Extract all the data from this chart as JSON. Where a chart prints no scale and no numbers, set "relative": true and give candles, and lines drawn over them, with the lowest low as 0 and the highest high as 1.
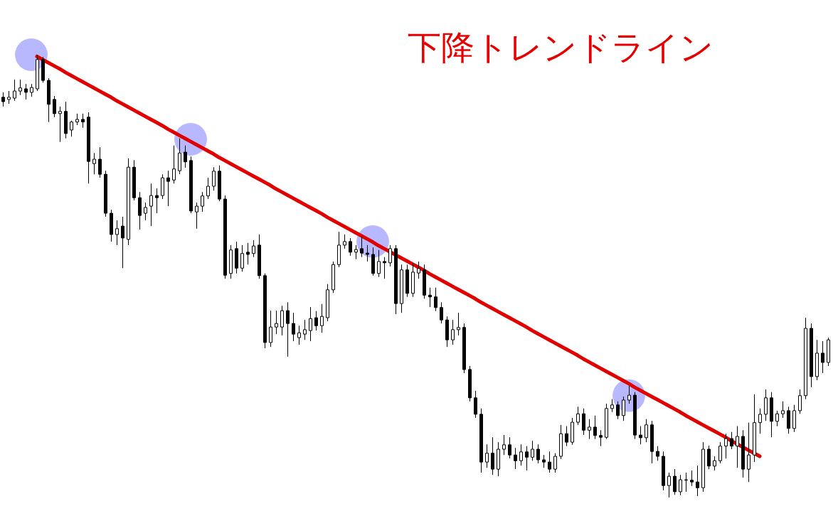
{
  "chart_data": {
    "type": "candlestick",
    "title": "下降トレンドライン",
    "relative": true,
    "categories": [
      null,
      null,
      null,
      null,
      null,
      null,
      null,
      null,
      null,
      null,
      null,
      null,
      null,
      null,
      null,
      null,
      null,
      null,
      null,
      null,
      null,
      null,
      null,
      null,
      null,
      null,
      null,
      null,
      null,
      null,
      null,
      null,
      null,
      null,
      null,
      null,
      null,
      null,
      null,
      null,
      null,
      null,
      null,
      null,
      null,
      null,
      null,
      null,
      null,
      null,
      null,
      null,
      null,
      null,
      null,
      null,
      null,
      null,
      null,
      null,
      null,
      null,
      null,
      null,
      null,
      null,
      null,
      null,
      null,
      null,
      null,
      null,
      null,
      null,
      null,
      null,
      null,
      null,
      null,
      null,
      null,
      null,
      null,
      null,
      null,
      null,
      null,
      null,
      null,
      null,
      null,
      null,
      null,
      null,
      null,
      null,
      null,
      null,
      null,
      null,
      null,
      null,
      null,
      null,
      null,
      null,
      null,
      null,
      null,
      null,
      null,
      null,
      null,
      null,
      null,
      null,
      null,
      null,
      null,
      null,
      null,
      null,
      null,
      null,
      null,
      null,
      null,
      null,
      null,
      null,
      null,
      null,
      null,
      null,
      null,
      null,
      null,
      null,
      null,
      null,
      null,
      null,
      null,
      null,
      null,
      null
    ],
    "ohlc": [
      [
        0.904,
        0.915,
        0.883,
        0.894
      ],
      [
        0.899,
        0.918,
        0.889,
        0.904
      ],
      [
        0.902,
        0.944,
        0.896,
        0.918
      ],
      [
        0.918,
        0.944,
        0.909,
        0.925
      ],
      [
        0.923,
        0.934,
        0.899,
        0.915
      ],
      [
        0.915,
        0.934,
        0.905,
        0.926
      ],
      [
        0.923,
        1.0,
        0.918,
        0.989
      ],
      [
        0.989,
        0.995,
        0.937,
        0.942
      ],
      [
        0.942,
        0.947,
        0.848,
        0.888
      ],
      [
        0.899,
        0.907,
        0.859,
        0.867
      ],
      [
        0.867,
        0.883,
        0.803,
        0.872
      ],
      [
        0.872,
        0.894,
        0.811,
        0.822
      ],
      [
        0.83,
        0.851,
        0.815,
        0.848
      ],
      [
        0.848,
        0.867,
        0.841,
        0.854
      ],
      [
        0.854,
        0.867,
        0.835,
        0.848
      ],
      [
        0.859,
        0.87,
        0.709,
        0.759
      ],
      [
        0.754,
        0.778,
        0.73,
        0.764
      ],
      [
        0.764,
        0.791,
        0.722,
        0.73
      ],
      [
        0.73,
        0.738,
        0.634,
        0.642
      ],
      [
        0.642,
        0.65,
        0.578,
        0.594
      ],
      [
        0.594,
        0.626,
        0.57,
        0.607
      ],
      [
        0.613,
        0.634,
        0.518,
        0.586
      ],
      [
        0.583,
        0.766,
        0.57,
        0.746
      ],
      [
        0.746,
        0.762,
        0.671,
        0.677
      ],
      [
        0.677,
        0.69,
        0.605,
        0.637
      ],
      [
        0.642,
        0.666,
        0.626,
        0.655
      ],
      [
        0.658,
        0.709,
        0.613,
        0.682
      ],
      [
        0.682,
        0.698,
        0.642,
        0.677
      ],
      [
        0.682,
        0.73,
        0.674,
        0.722
      ],
      [
        0.722,
        0.738,
        0.658,
        0.714
      ],
      [
        0.717,
        0.795,
        0.709,
        0.742
      ],
      [
        0.738,
        0.811,
        0.73,
        0.778
      ],
      [
        0.78,
        0.795,
        0.745,
        0.758
      ],
      [
        0.761,
        0.77,
        0.642,
        0.647
      ],
      [
        0.645,
        0.666,
        0.607,
        0.658
      ],
      [
        0.658,
        0.69,
        0.645,
        0.681
      ],
      [
        0.681,
        0.722,
        0.674,
        0.703
      ],
      [
        0.703,
        0.746,
        0.693,
        0.737
      ],
      [
        0.737,
        0.75,
        0.669,
        0.674
      ],
      [
        0.674,
        0.682,
        0.494,
        0.502
      ],
      [
        0.506,
        0.57,
        0.494,
        0.559
      ],
      [
        0.562,
        0.578,
        0.506,
        0.518
      ],
      [
        0.518,
        0.57,
        0.51,
        0.551
      ],
      [
        0.554,
        0.575,
        0.526,
        0.549
      ],
      [
        0.551,
        0.581,
        0.543,
        0.568
      ],
      [
        0.57,
        0.594,
        0.494,
        0.501
      ],
      [
        0.501,
        0.506,
        0.337,
        0.35
      ],
      [
        0.35,
        0.422,
        0.34,
        0.385
      ],
      [
        0.385,
        0.422,
        0.369,
        0.393
      ],
      [
        0.385,
        0.433,
        0.366,
        0.422
      ],
      [
        0.422,
        0.441,
        0.318,
        0.393
      ],
      [
        0.393,
        0.417,
        0.353,
        0.369
      ],
      [
        0.361,
        0.388,
        0.345,
        0.372
      ],
      [
        0.369,
        0.401,
        0.356,
        0.379
      ],
      [
        0.377,
        0.43,
        0.353,
        0.404
      ],
      [
        0.406,
        0.421,
        0.377,
        0.388
      ],
      [
        0.388,
        0.437,
        0.372,
        0.409
      ],
      [
        0.406,
        0.482,
        0.398,
        0.469
      ],
      [
        0.469,
        0.533,
        0.462,
        0.526
      ],
      [
        0.526,
        0.6,
        0.52,
        0.57
      ],
      [
        0.57,
        0.594,
        0.562,
        0.578
      ],
      [
        0.578,
        0.586,
        0.546,
        0.554
      ],
      [
        0.554,
        0.57,
        0.538,
        0.56
      ],
      [
        0.562,
        0.589,
        0.543,
        0.552
      ],
      [
        0.552,
        0.57,
        0.533,
        0.549
      ],
      [
        0.549,
        0.565,
        0.501,
        0.506
      ],
      [
        0.506,
        0.559,
        0.498,
        0.533
      ],
      [
        0.533,
        0.543,
        0.494,
        0.53
      ],
      [
        0.53,
        0.57,
        0.522,
        0.562
      ],
      [
        0.562,
        0.57,
        0.414,
        0.438
      ],
      [
        0.438,
        0.526,
        0.417,
        0.514
      ],
      [
        0.514,
        0.526,
        0.453,
        0.461
      ],
      [
        0.461,
        0.53,
        0.453,
        0.509
      ],
      [
        0.507,
        0.533,
        0.494,
        0.517
      ],
      [
        0.514,
        0.526,
        0.449,
        0.457
      ],
      [
        0.457,
        0.474,
        0.43,
        0.453
      ],
      [
        0.453,
        0.474,
        0.421,
        0.429
      ],
      [
        0.429,
        0.441,
        0.393,
        0.401
      ],
      [
        0.401,
        0.409,
        0.34,
        0.356
      ],
      [
        0.356,
        0.401,
        0.345,
        0.379
      ],
      [
        0.379,
        0.417,
        0.366,
        0.384
      ],
      [
        0.384,
        0.393,
        0.281,
        0.289
      ],
      [
        0.289,
        0.297,
        0.217,
        0.225
      ],
      [
        0.225,
        0.241,
        0.18,
        0.188
      ],
      [
        0.188,
        0.201,
        0.056,
        0.08
      ],
      [
        0.08,
        0.12,
        0.067,
        0.1
      ],
      [
        0.1,
        0.136,
        0.051,
        0.064
      ],
      [
        0.064,
        0.125,
        0.048,
        0.109
      ],
      [
        0.109,
        0.141,
        0.096,
        0.119
      ],
      [
        0.119,
        0.136,
        0.088,
        0.096
      ],
      [
        0.096,
        0.112,
        0.064,
        0.083
      ],
      [
        0.083,
        0.12,
        0.072,
        0.103
      ],
      [
        0.103,
        0.116,
        0.061,
        0.091
      ],
      [
        0.091,
        0.128,
        0.083,
        0.109
      ],
      [
        0.109,
        0.12,
        0.077,
        0.085
      ],
      [
        0.085,
        0.096,
        0.067,
        0.08
      ],
      [
        0.08,
        0.104,
        0.056,
        0.064
      ],
      [
        0.064,
        0.1,
        0.056,
        0.093
      ],
      [
        0.093,
        0.164,
        0.087,
        0.144
      ],
      [
        0.144,
        0.161,
        0.116,
        0.125
      ],
      [
        0.125,
        0.18,
        0.119,
        0.17
      ],
      [
        0.17,
        0.205,
        0.164,
        0.189
      ],
      [
        0.189,
        0.201,
        0.141,
        0.152
      ],
      [
        0.152,
        0.177,
        0.132,
        0.159
      ],
      [
        0.159,
        0.185,
        0.132,
        0.14
      ],
      [
        0.14,
        0.152,
        0.116,
        0.136
      ],
      [
        0.136,
        0.212,
        0.132,
        0.201
      ],
      [
        0.201,
        0.222,
        0.193,
        0.209
      ],
      [
        0.209,
        0.217,
        0.177,
        0.185
      ],
      [
        0.185,
        0.228,
        0.173,
        0.22
      ],
      [
        0.22,
        0.252,
        0.212,
        0.231
      ],
      [
        0.231,
        0.238,
        0.132,
        0.141
      ],
      [
        0.141,
        0.161,
        0.12,
        0.135
      ],
      [
        0.135,
        0.177,
        0.125,
        0.164
      ],
      [
        0.164,
        0.173,
        0.077,
        0.104
      ],
      [
        0.104,
        0.116,
        0.083,
        0.093
      ],
      [
        0.093,
        0.104,
        0.016,
        0.027
      ],
      [
        0.027,
        0.056,
        0.0,
        0.048
      ],
      [
        0.048,
        0.064,
        0.006,
        0.013
      ],
      [
        0.013,
        0.051,
        0.005,
        0.04
      ],
      [
        0.04,
        0.056,
        0.013,
        0.039
      ],
      [
        0.039,
        0.061,
        0.026,
        0.035
      ],
      [
        0.035,
        0.072,
        0.003,
        0.022
      ],
      [
        0.022,
        0.125,
        0.013,
        0.109
      ],
      [
        0.109,
        0.117,
        0.064,
        0.071
      ],
      [
        0.071,
        0.093,
        0.061,
        0.083
      ],
      [
        0.083,
        0.125,
        0.077,
        0.116
      ],
      [
        0.116,
        0.144,
        0.088,
        0.133
      ],
      [
        0.133,
        0.148,
        0.109,
        0.116
      ],
      [
        0.116,
        0.161,
        0.067,
        0.138
      ],
      [
        0.138,
        0.152,
        0.045,
        0.064
      ],
      [
        0.064,
        0.169,
        0.035,
        0.096
      ],
      [
        0.096,
        0.233,
        0.08,
        0.169
      ],
      [
        0.169,
        0.201,
        0.144,
        0.188
      ],
      [
        0.188,
        0.244,
        0.173,
        0.225
      ],
      [
        0.225,
        0.238,
        0.136,
        0.172
      ],
      [
        0.172,
        0.196,
        0.161,
        0.189
      ],
      [
        0.189,
        0.217,
        0.18,
        0.196
      ],
      [
        0.196,
        0.205,
        0.144,
        0.156
      ],
      [
        0.156,
        0.209,
        0.148,
        0.196
      ],
      [
        0.196,
        0.244,
        0.189,
        0.23
      ],
      [
        0.23,
        0.406,
        0.222,
        0.382
      ],
      [
        0.382,
        0.393,
        0.249,
        0.273
      ],
      [
        0.273,
        0.356,
        0.265,
        0.326
      ],
      [
        0.326,
        0.353,
        0.281,
        0.305
      ],
      [
        0.305,
        0.361,
        0.297,
        0.356
      ]
    ],
    "series": [
      {
        "type": "scatter",
        "color": "#b8b8ff",
        "marker": "circle",
        "values": [
          null,
          null,
          null,
          null,
          null,
          1.0,
          null,
          null,
          null,
          null,
          null,
          null,
          null,
          null,
          null,
          null,
          null,
          null,
          null,
          null,
          null,
          null,
          null,
          null,
          null,
          null,
          null,
          null,
          null,
          null,
          null,
          null,
          null,
          0.809,
          null,
          null,
          null,
          null,
          null,
          null,
          null,
          null,
          null,
          null,
          null,
          null,
          null,
          null,
          null,
          null,
          null,
          null,
          null,
          null,
          null,
          null,
          null,
          null,
          null,
          null,
          null,
          null,
          null,
          null,
          null,
          0.578,
          null,
          null,
          null,
          null,
          null,
          null,
          null,
          null,
          null,
          null,
          null,
          null,
          null,
          null,
          null,
          null,
          null,
          null,
          null,
          null,
          null,
          null,
          null,
          null,
          null,
          null,
          null,
          null,
          null,
          null,
          null,
          null,
          null,
          null,
          null,
          null,
          null,
          null,
          null,
          null,
          null,
          null,
          null,
          null,
          0.23,
          null,
          null,
          null,
          null,
          null,
          null,
          null,
          null,
          null,
          null,
          null,
          null,
          null,
          null,
          null,
          null,
          null,
          null,
          null,
          null,
          null,
          null,
          null,
          null,
          null,
          null,
          null,
          null,
          null,
          null,
          null,
          null,
          null,
          null,
          null
        ]
      },
      {
        "type": "line",
        "color": "#e00000",
        "line_style": "solid",
        "values": [
          null,
          null,
          null,
          null,
          null,
          null,
          0.996,
          0.989,
          0.982,
          0.975,
          0.968,
          0.96,
          0.953,
          0.946,
          0.939,
          0.932,
          0.925,
          0.918,
          0.911,
          0.904,
          0.896,
          0.889,
          0.882,
          0.875,
          0.868,
          0.861,
          0.854,
          0.847,
          0.84,
          0.832,
          0.825,
          0.818,
          0.811,
          0.804,
          0.797,
          0.79,
          0.783,
          0.776,
          0.768,
          0.761,
          0.754,
          0.747,
          0.74,
          0.733,
          0.726,
          0.719,
          0.712,
          0.705,
          0.697,
          0.69,
          0.683,
          0.676,
          0.669,
          0.662,
          0.655,
          0.648,
          0.641,
          0.633,
          0.626,
          0.619,
          0.612,
          0.605,
          0.598,
          0.591,
          0.584,
          0.577,
          0.569,
          0.562,
          0.555,
          0.548,
          0.541,
          0.534,
          0.527,
          0.52,
          0.513,
          0.505,
          0.498,
          0.491,
          0.484,
          0.477,
          0.47,
          0.463,
          0.456,
          0.449,
          0.441,
          0.434,
          0.427,
          0.42,
          0.413,
          0.406,
          0.399,
          0.392,
          0.385,
          0.377,
          0.37,
          0.363,
          0.356,
          0.349,
          0.342,
          0.335,
          0.328,
          0.321,
          0.313,
          0.306,
          0.299,
          0.292,
          0.285,
          0.278,
          0.271,
          0.264,
          0.257,
          0.249,
          0.242,
          0.235,
          0.228,
          0.221,
          0.214,
          0.207,
          0.2,
          0.193,
          0.185,
          0.178,
          0.171,
          0.164,
          0.157,
          0.15,
          0.143,
          0.136,
          0.128,
          0.121,
          0.114,
          0.107,
          0.1,
          0.093,
          null,
          null,
          null,
          null,
          null,
          null,
          null,
          null,
          null,
          null,
          null,
          null
        ]
      }
    ]
  }
}
